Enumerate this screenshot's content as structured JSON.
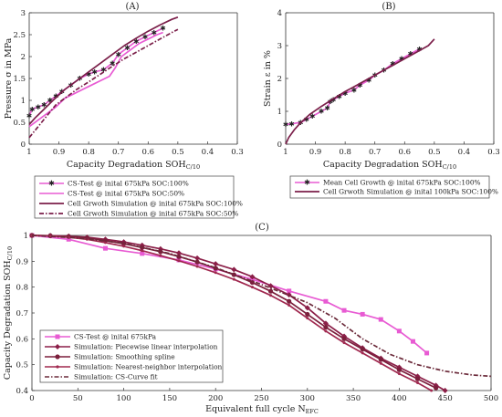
{
  "colors": {
    "cs_test": "#e85bd3",
    "simulation": "#7b1f4a",
    "piecewise": "#8b1f48",
    "smoothing": "#7b1f3c",
    "nearest": "#a0284f",
    "curvefit": "#6b2a3a"
  },
  "chart_data": [
    {
      "id": "A",
      "type": "line",
      "title": "(A)",
      "xlabel": "Capacity Degradation SOH",
      "xlabel_sub": "C/10",
      "ylabel": "Pressure σ in MPa",
      "xlim": [
        1,
        0.3
      ],
      "ylim": [
        0,
        3
      ],
      "xticks": [
        "1",
        "0.9",
        "0.8",
        "0.7",
        "0.6",
        "0.5",
        "0.4",
        "0.3"
      ],
      "xtick_values": [
        1,
        0.9,
        0.8,
        0.7,
        0.6,
        0.5,
        0.4,
        0.3
      ],
      "yticks": [
        "0",
        "0.5",
        "1",
        "1.5",
        "2",
        "2.5",
        "3"
      ],
      "ytick_values": [
        0,
        0.5,
        1,
        1.5,
        2,
        2.5,
        3
      ],
      "series": [
        {
          "name": "CS-Test @ inital 675kPa SOC:100%",
          "color": "#e85bd3",
          "style": "solid",
          "marker": "star",
          "x": [
            1,
            0.99,
            0.97,
            0.95,
            0.93,
            0.91,
            0.89,
            0.86,
            0.83,
            0.8,
            0.78,
            0.75,
            0.72,
            0.7,
            0.67,
            0.64,
            0.61,
            0.58,
            0.55
          ],
          "y": [
            0.65,
            0.8,
            0.85,
            0.9,
            1.0,
            1.1,
            1.2,
            1.35,
            1.5,
            1.6,
            1.65,
            1.7,
            1.85,
            2.05,
            2.2,
            2.35,
            2.45,
            2.55,
            2.65
          ]
        },
        {
          "name": "CS-Test @ inital 675kPa SOC:50%",
          "color": "#e85bd3",
          "style": "solid",
          "marker": "none",
          "x": [
            1,
            0.97,
            0.94,
            0.91,
            0.88,
            0.85,
            0.82,
            0.79,
            0.76,
            0.73,
            0.71,
            0.69,
            0.66,
            0.63,
            0.6,
            0.57,
            0.55
          ],
          "y": [
            0.4,
            0.55,
            0.7,
            0.85,
            1.05,
            1.15,
            1.25,
            1.35,
            1.45,
            1.55,
            1.75,
            2.0,
            2.15,
            2.3,
            2.4,
            2.5,
            2.55
          ]
        },
        {
          "name": "Cell Grwoth Simulation @ inital 675kPa SOC:100%",
          "color": "#7b1f4a",
          "style": "solid",
          "marker": "none",
          "x": [
            1,
            0.98,
            0.95,
            0.92,
            0.88,
            0.84,
            0.8,
            0.76,
            0.72,
            0.68,
            0.64,
            0.6,
            0.56,
            0.52,
            0.5
          ],
          "y": [
            0.45,
            0.6,
            0.8,
            1.0,
            1.25,
            1.45,
            1.65,
            1.85,
            2.05,
            2.25,
            2.42,
            2.58,
            2.72,
            2.85,
            2.9
          ]
        },
        {
          "name": "Cell Grwoth Simulation @ inital 675kPa SOC:50%",
          "color": "#7b1f4a",
          "style": "dashdot",
          "marker": "none",
          "x": [
            1,
            0.97,
            0.94,
            0.91,
            0.88,
            0.84,
            0.8,
            0.76,
            0.72,
            0.68,
            0.64,
            0.6,
            0.56,
            0.52,
            0.5
          ],
          "y": [
            0.15,
            0.4,
            0.65,
            0.9,
            1.05,
            1.25,
            1.42,
            1.6,
            1.78,
            1.95,
            2.1,
            2.25,
            2.4,
            2.55,
            2.62
          ]
        }
      ]
    },
    {
      "id": "B",
      "type": "line",
      "title": "(B)",
      "xlabel": "Capacity Degradation SOH",
      "xlabel_sub": "C/10",
      "ylabel": "Strain ε in %",
      "xlim": [
        1,
        0.3
      ],
      "ylim": [
        0,
        4
      ],
      "xticks": [
        "1",
        "0.9",
        "0.8",
        "0.7",
        "0.6",
        "0.5",
        "0.4",
        "0.3"
      ],
      "xtick_values": [
        1,
        0.9,
        0.8,
        0.7,
        0.6,
        0.5,
        0.4,
        0.3
      ],
      "yticks": [
        "0",
        "1",
        "2",
        "3",
        "4"
      ],
      "ytick_values": [
        0,
        1,
        2,
        3,
        4
      ],
      "series": [
        {
          "name": "Mean Cell Growth @ inital 675kPa SOC:100%",
          "color": "#e85bd3",
          "style": "solid",
          "marker": "star",
          "x": [
            1,
            0.98,
            0.95,
            0.93,
            0.91,
            0.88,
            0.86,
            0.85,
            0.84,
            0.82,
            0.8,
            0.77,
            0.75,
            0.72,
            0.7,
            0.67,
            0.64,
            0.61,
            0.58,
            0.55
          ],
          "y": [
            0.6,
            0.62,
            0.66,
            0.75,
            0.85,
            1.0,
            1.1,
            1.3,
            1.35,
            1.45,
            1.55,
            1.65,
            1.8,
            1.95,
            2.1,
            2.25,
            2.45,
            2.6,
            2.75,
            2.9
          ]
        },
        {
          "name": "Cell Grwoth Simulation @ inital 100kPa SOC:100%",
          "color": "#7b1f4a",
          "style": "solid",
          "marker": "none",
          "x": [
            1,
            0.99,
            0.97,
            0.95,
            0.92,
            0.88,
            0.84,
            0.8,
            0.76,
            0.72,
            0.68,
            0.64,
            0.6,
            0.56,
            0.52,
            0.5
          ],
          "y": [
            0.0,
            0.2,
            0.45,
            0.65,
            0.9,
            1.15,
            1.38,
            1.6,
            1.8,
            2.0,
            2.2,
            2.4,
            2.6,
            2.8,
            3.0,
            3.2
          ]
        }
      ]
    },
    {
      "id": "C",
      "type": "line",
      "title": "(C)",
      "xlabel": "Equivalent full cycle N",
      "xlabel_sub": "EFC",
      "ylabel": "Capacity Degradation SOH",
      "ylabel_sub": "C/10",
      "xlim": [
        0,
        500
      ],
      "ylim": [
        0.4,
        1
      ],
      "xticks": [
        "0",
        "50",
        "100",
        "150",
        "200",
        "250",
        "300",
        "350",
        "400",
        "450",
        "500"
      ],
      "xtick_values": [
        0,
        50,
        100,
        150,
        200,
        250,
        300,
        350,
        400,
        450,
        500
      ],
      "yticks": [
        "0.4",
        "0.5",
        "0.6",
        "0.7",
        "0.8",
        "0.9",
        "1"
      ],
      "ytick_values": [
        0.4,
        0.5,
        0.6,
        0.7,
        0.8,
        0.9,
        1
      ],
      "series": [
        {
          "name": "CS-Test @ inital 675kPa",
          "color": "#e85bd3",
          "style": "solid",
          "marker": "square",
          "x": [
            0,
            40,
            80,
            120,
            160,
            200,
            240,
            280,
            320,
            340,
            360,
            380,
            400,
            415,
            430
          ],
          "y": [
            1.0,
            0.985,
            0.95,
            0.93,
            0.905,
            0.87,
            0.83,
            0.785,
            0.745,
            0.71,
            0.695,
            0.675,
            0.63,
            0.59,
            0.545
          ]
        },
        {
          "name": "Simulation: Piecewise linear interpolation",
          "color": "#8b1f48",
          "style": "solid",
          "marker": "diamond",
          "x": [
            0,
            20,
            40,
            60,
            80,
            100,
            120,
            140,
            160,
            180,
            200,
            220,
            240,
            260,
            280,
            300,
            320,
            340,
            360,
            380,
            400,
            420,
            440,
            450
          ],
          "y": [
            1.0,
            0.999,
            0.997,
            0.993,
            0.985,
            0.975,
            0.962,
            0.948,
            0.932,
            0.912,
            0.89,
            0.868,
            0.84,
            0.805,
            0.77,
            0.72,
            0.66,
            0.61,
            0.565,
            0.525,
            0.49,
            0.455,
            0.42,
            0.4
          ]
        },
        {
          "name": "Simulation: Smoothing spline",
          "color": "#7b1f3c",
          "style": "solid",
          "marker": "circle",
          "x": [
            0,
            20,
            40,
            60,
            80,
            100,
            120,
            140,
            160,
            180,
            200,
            220,
            240,
            260,
            280,
            300,
            320,
            340,
            360,
            380,
            400,
            420,
            440
          ],
          "y": [
            1.0,
            0.999,
            0.996,
            0.99,
            0.98,
            0.968,
            0.953,
            0.937,
            0.918,
            0.897,
            0.873,
            0.848,
            0.818,
            0.784,
            0.745,
            0.695,
            0.645,
            0.6,
            0.56,
            0.52,
            0.48,
            0.445,
            0.41
          ]
        },
        {
          "name": "Simulation: Nearest-neighbor interpolation",
          "color": "#a0284f",
          "style": "solid",
          "marker": "dot",
          "x": [
            0,
            20,
            40,
            60,
            80,
            100,
            120,
            140,
            160,
            180,
            200,
            220,
            240,
            260,
            280,
            300,
            320,
            340,
            360,
            380,
            400,
            420,
            435
          ],
          "y": [
            1.0,
            0.998,
            0.993,
            0.985,
            0.972,
            0.958,
            0.941,
            0.922,
            0.902,
            0.88,
            0.856,
            0.83,
            0.8,
            0.768,
            0.73,
            0.68,
            0.63,
            0.585,
            0.545,
            0.505,
            0.465,
            0.43,
            0.4
          ]
        },
        {
          "name": "Simulation: CS-Curve fit",
          "color": "#6b2a3a",
          "style": "dashdot",
          "marker": "none",
          "x": [
            0,
            50,
            100,
            150,
            200,
            250,
            300,
            330,
            360,
            390,
            420,
            450,
            480,
            500
          ],
          "y": [
            1.0,
            0.99,
            0.97,
            0.93,
            0.875,
            0.81,
            0.74,
            0.68,
            0.6,
            0.54,
            0.5,
            0.475,
            0.46,
            0.455
          ]
        }
      ]
    }
  ]
}
